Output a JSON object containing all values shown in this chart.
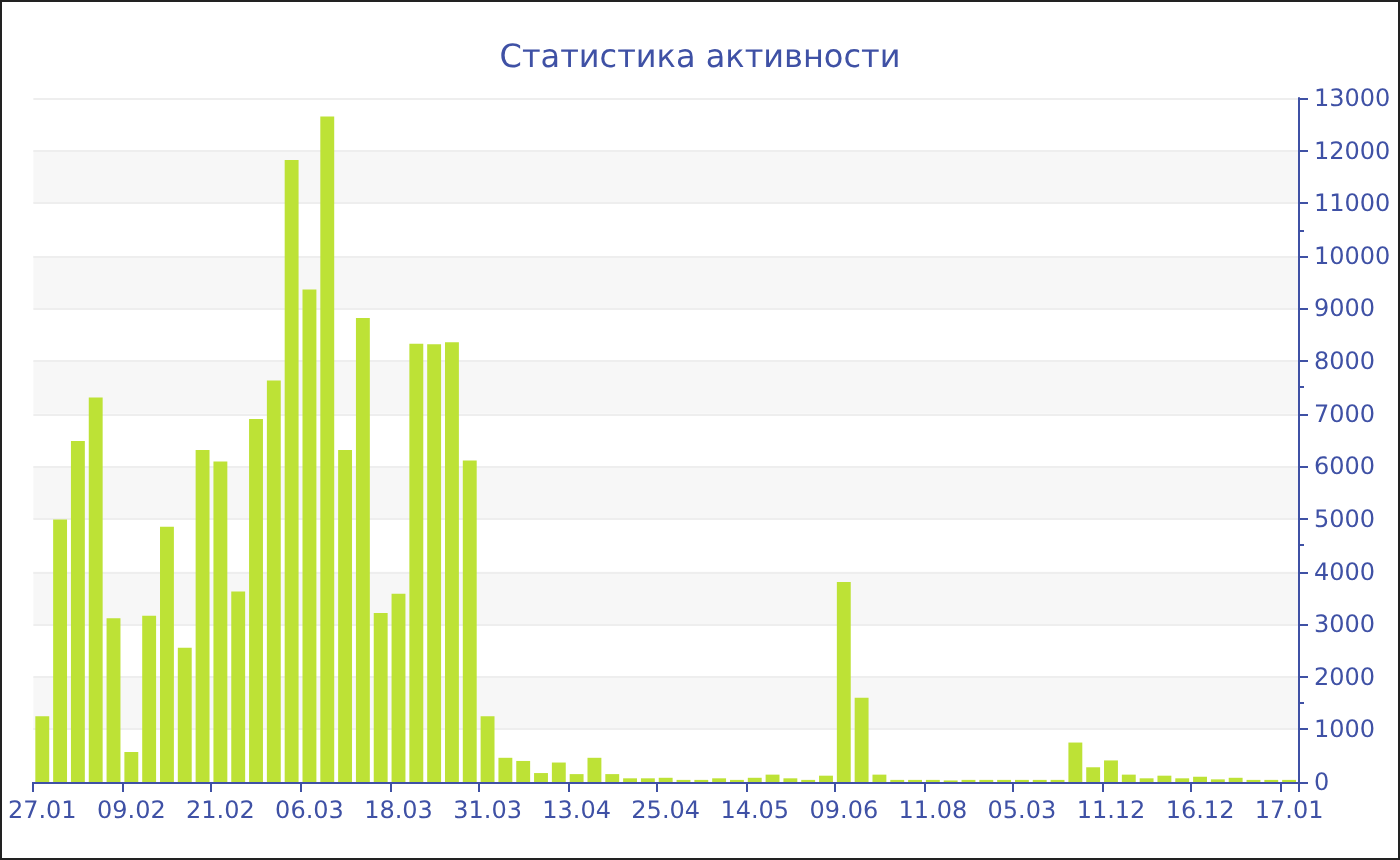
{
  "chart_data": {
    "type": "bar",
    "title": "Статистика активности",
    "categories": [
      "27.01",
      null,
      null,
      null,
      null,
      "09.02",
      null,
      null,
      null,
      null,
      "21.02",
      null,
      null,
      null,
      null,
      "06.03",
      null,
      null,
      null,
      null,
      "18.03",
      null,
      null,
      null,
      null,
      "31.03",
      null,
      null,
      null,
      null,
      "13.04",
      null,
      null,
      null,
      null,
      "25.04",
      null,
      null,
      null,
      null,
      "14.05",
      null,
      null,
      null,
      null,
      "09.06",
      null,
      null,
      null,
      null,
      "11.08",
      null,
      null,
      null,
      null,
      "05.03",
      null,
      null,
      null,
      null,
      "11.12",
      null,
      null,
      null,
      null,
      "16.12",
      null,
      null,
      null,
      null,
      "17.01"
    ],
    "values": [
      1250,
      4990,
      6480,
      7310,
      3110,
      570,
      3160,
      4850,
      2550,
      6310,
      6090,
      3620,
      6900,
      7630,
      11820,
      9360,
      12650,
      6310,
      8820,
      3210,
      3580,
      8330,
      8320,
      8360,
      6110,
      1250,
      460,
      400,
      170,
      370,
      150,
      460,
      150,
      70,
      70,
      80,
      40,
      40,
      70,
      40,
      80,
      140,
      70,
      40,
      120,
      3800,
      1600,
      140,
      40,
      40,
      40,
      30,
      40,
      40,
      40,
      40,
      40,
      40,
      750,
      280,
      410,
      140,
      70,
      120,
      70,
      100,
      50,
      80,
      40,
      40,
      40
    ],
    "color": "#bde236",
    "ylim": [
      0,
      13000
    ],
    "yticks": [
      0,
      1000,
      2000,
      3000,
      4000,
      5000,
      6000,
      7000,
      8000,
      9000,
      10000,
      11000,
      12000,
      13000
    ],
    "grid": true
  }
}
